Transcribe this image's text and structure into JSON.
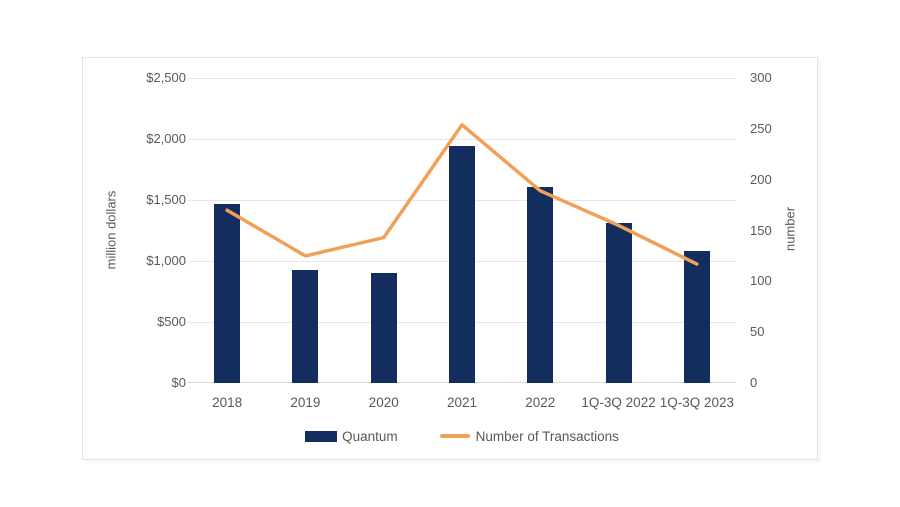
{
  "card": {
    "background": "#ffffff",
    "border_color": "#e2e2e2"
  },
  "colors": {
    "bar": "#132d5e",
    "line": "#f0a158",
    "grid": "#e6e6e6",
    "axis_line": "#d9d9d9",
    "text": "#595959"
  },
  "axes": {
    "left_title": "million dollars",
    "right_title": "number",
    "left_ticks": [
      "$2,500",
      "$2,000",
      "$1,500",
      "$1,000",
      "$500",
      "$0"
    ],
    "right_ticks": [
      "300",
      "250",
      "200",
      "150",
      "100",
      "50",
      "0"
    ]
  },
  "legend": {
    "items": [
      {
        "label": "Quantum"
      },
      {
        "label": "Number of Transactions"
      }
    ]
  },
  "chart_data": {
    "type": "bar",
    "categories": [
      "2018",
      "2019",
      "2020",
      "2021",
      "2022",
      "1Q-3Q 2022",
      "1Q-3Q 2023"
    ],
    "series": [
      {
        "name": "Quantum",
        "type": "bar",
        "axis": "left",
        "values": [
          1470,
          925,
          905,
          1940,
          1610,
          1310,
          1085
        ]
      },
      {
        "name": "Number of Transactions",
        "type": "line",
        "axis": "right",
        "values": [
          170,
          125,
          143,
          254,
          189,
          155,
          117
        ]
      }
    ],
    "title": "",
    "xlabel": "",
    "ylabel_left": "million dollars",
    "ylabel_right": "number",
    "ylim_left": [
      0,
      2500
    ],
    "ylim_right": [
      0,
      300
    ],
    "grid": true,
    "legend_position": "bottom"
  }
}
